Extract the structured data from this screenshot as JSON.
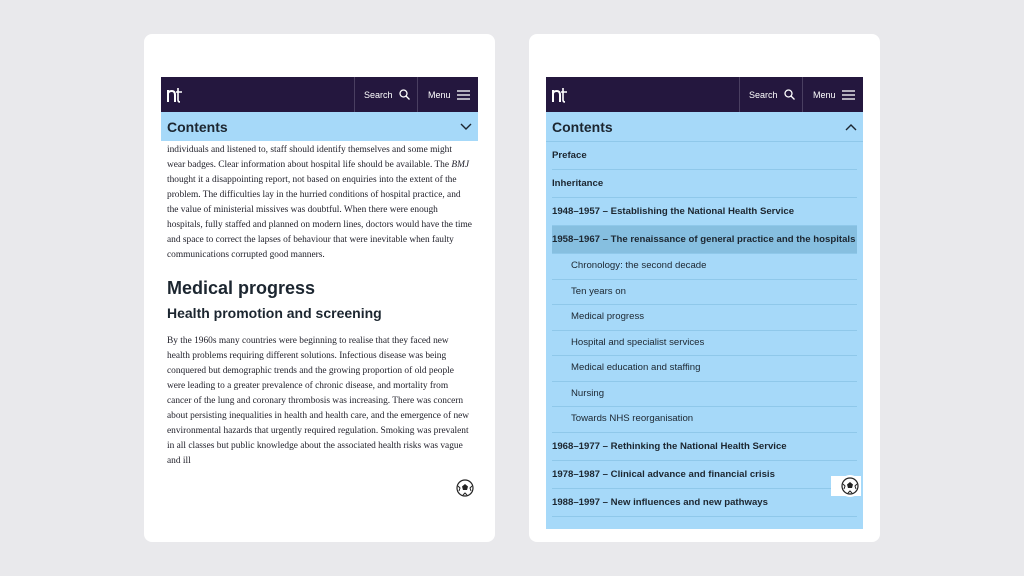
{
  "brand": {
    "logo_text": "nt"
  },
  "topbar": {
    "search_label": "Search",
    "menu_label": "Menu"
  },
  "contents_label": "Contents",
  "article": {
    "intro_before_em": "individuals and listened to, staff should identify themselves and some might wear badges. Clear information about hospital life should be available. The ",
    "intro_em": "BMJ",
    "intro_after_em": " thought it a disappointing report, not based on enquiries into the extent of the problem. The difficulties lay in the hurried conditions of hospital practice, and the value of ministerial missives was doubtful. When there were enough hospitals, fully staffed and planned on modern lines, doctors would have the time and space to correct the lapses of behaviour that were inevitable when faulty communications corrupted good manners.",
    "heading_main": "Medical progress",
    "heading_sub": "Health promotion and screening",
    "body": "By the 1960s many countries were beginning to realise that they faced new health problems requiring different solutions. Infectious disease was being conquered but demographic trends and the growing proportion of old people were leading to a greater prevalence of chronic disease, and mortality from cancer of the lung and coronary thrombosis was increasing. There was concern about persisting inequalities in health and health care, and the emergence of new environmental hazards that urgently required regulation. Smoking was prevalent in all classes but public knowledge about the associated health risks was vague and ill"
  },
  "toc": {
    "top_items": [
      "Preface",
      "Inheritance",
      "1948–1957 – Establishing the National Health Service"
    ],
    "active_item": "1958–1967 – The renaissance of general practice and the hospitals",
    "sub_items": [
      "Chronology: the second decade",
      "Ten years on",
      "Medical progress",
      "Hospital and specialist services",
      "Medical education and staffing",
      "Nursing",
      "Towards NHS reorganisation"
    ],
    "bottom_items": [
      "1968–1977 – Rethinking the National Health Service",
      "1978–1987 – Clinical advance and financial crisis",
      "1988–1997 – New influences and new pathways"
    ]
  },
  "colors": {
    "topbar": "#24173e",
    "contents_bg": "#a6d9f9",
    "active_bg": "#86bfe0",
    "page_bg": "#e9e9ec"
  },
  "icons": [
    "search-icon",
    "hamburger-icon",
    "chevron-down-icon",
    "chevron-up-icon",
    "football-icon"
  ]
}
